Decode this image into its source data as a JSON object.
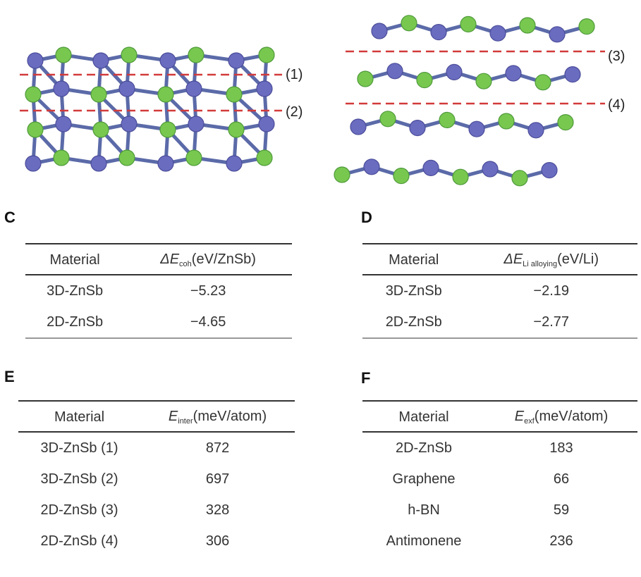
{
  "structures": {
    "left_labels": [
      "(1)",
      "(2)"
    ],
    "right_labels": [
      "(3)",
      "(4)"
    ],
    "colors": {
      "zn": "#6a6cc0",
      "sb": "#78c850",
      "bond": "#5b6aa8",
      "cut": "#d23a3a"
    }
  },
  "panels": {
    "C": {
      "label": "C",
      "headers": {
        "material": "Material",
        "sym": "ΔE",
        "sub": "coh",
        "unit": "(eV/ZnSb)"
      },
      "rows": [
        {
          "material": "3D-ZnSb",
          "value": "−5.23"
        },
        {
          "material": "2D-ZnSb",
          "value": "−4.65"
        }
      ]
    },
    "D": {
      "label": "D",
      "headers": {
        "material": "Material",
        "sym": "ΔE",
        "sub": "Li alloying",
        "unit": "(eV/Li)"
      },
      "rows": [
        {
          "material": "3D-ZnSb",
          "value": "−2.19"
        },
        {
          "material": "2D-ZnSb",
          "value": "−2.77"
        }
      ]
    },
    "E": {
      "label": "E",
      "headers": {
        "material": "Material",
        "sym": "E",
        "sub": "inter",
        "unit": "(meV/atom)"
      },
      "rows": [
        {
          "material": "3D-ZnSb (1)",
          "value": "872"
        },
        {
          "material": "3D-ZnSb (2)",
          "value": "697"
        },
        {
          "material": "2D-ZnSb (3)",
          "value": "328"
        },
        {
          "material": "2D-ZnSb (4)",
          "value": "306"
        }
      ]
    },
    "F": {
      "label": "F",
      "headers": {
        "material": "Material",
        "sym": "E",
        "sub": "exf",
        "unit": "(meV/atom)"
      },
      "rows": [
        {
          "material": "2D-ZnSb",
          "value": "183"
        },
        {
          "material": "Graphene",
          "value": "66"
        },
        {
          "material": "h-BN",
          "value": "59"
        },
        {
          "material": "Antimonene",
          "value": "236"
        }
      ]
    }
  }
}
